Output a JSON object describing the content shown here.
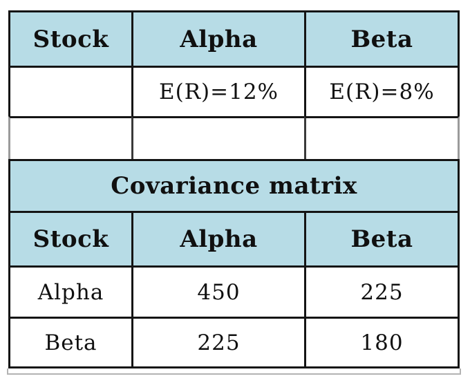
{
  "colors": {
    "header_fill": "#b7dce6",
    "border_dark": "#141414",
    "border_light": "#9b9b9b",
    "text": "#101010",
    "background": "#ffffff"
  },
  "stocks_table": {
    "headers": [
      "Stock",
      "Alpha",
      "Beta"
    ],
    "expected_return_row": [
      "",
      "E(R)=12%",
      "E(R)=8%"
    ],
    "spacer_row": [
      "",
      "",
      ""
    ]
  },
  "covariance_table": {
    "title": "Covariance matrix",
    "headers": [
      "Stock",
      "Alpha",
      "Beta"
    ],
    "rows": [
      [
        "Alpha",
        "450",
        "225"
      ],
      [
        "Beta",
        "225",
        "180"
      ]
    ]
  }
}
